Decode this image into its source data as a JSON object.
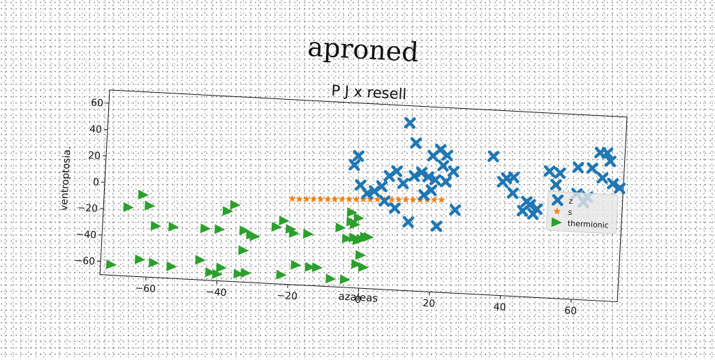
{
  "figure": {
    "suptitle": "aproned"
  },
  "chart_data": {
    "type": "scatter",
    "title": "P J x resell",
    "xlabel": "azaleas",
    "ylabel": "ventroptosia.",
    "xlim": [
      -73,
      73
    ],
    "ylim": [
      -70,
      70
    ],
    "xticks": [
      -60,
      -40,
      -20,
      0,
      20,
      40,
      60
    ],
    "yticks": [
      -60,
      -40,
      -20,
      0,
      20,
      40,
      60
    ],
    "grid": false,
    "legend_position": "right",
    "series": [
      {
        "name": "z",
        "marker": "x",
        "color": "#1f77b4",
        "points": [
          [
            12,
            57
          ],
          [
            14,
            42
          ],
          [
            19,
            33
          ],
          [
            21,
            38
          ],
          [
            23,
            34
          ],
          [
            22,
            26
          ],
          [
            25,
            22
          ],
          [
            -2,
            30
          ],
          [
            -3,
            23
          ],
          [
            -1,
            8
          ],
          [
            5,
            8
          ],
          [
            7,
            16
          ],
          [
            9,
            20
          ],
          [
            11,
            11
          ],
          [
            14,
            17
          ],
          [
            16,
            20
          ],
          [
            18,
            17
          ],
          [
            20,
            15
          ],
          [
            23,
            14
          ],
          [
            6,
            -3
          ],
          [
            9,
            -8
          ],
          [
            13,
            -18
          ],
          [
            21,
            -20
          ],
          [
            26,
            -7
          ],
          [
            3,
            4
          ],
          [
            1,
            2
          ],
          [
            17,
            3
          ],
          [
            19,
            7
          ],
          [
            36,
            35
          ],
          [
            39,
            16
          ],
          [
            40,
            19
          ],
          [
            42,
            20
          ],
          [
            42,
            8
          ],
          [
            45,
            -5
          ],
          [
            47,
            0
          ],
          [
            48,
            -7
          ],
          [
            49,
            -3
          ],
          [
            55,
            25
          ],
          [
            60,
            30
          ],
          [
            64,
            30
          ],
          [
            66,
            42
          ],
          [
            68,
            42
          ],
          [
            69,
            36
          ],
          [
            70,
            19
          ],
          [
            72,
            16
          ],
          [
            60,
            10
          ],
          [
            54,
            16
          ],
          [
            62,
            4
          ],
          [
            63,
            8
          ],
          [
            46,
            2
          ],
          [
            52,
            26
          ],
          [
            67,
            23
          ]
        ]
      },
      {
        "name": "s",
        "marker": "star",
        "color": "#ff7f0e",
        "points": [
          [
            -20,
            -5
          ],
          [
            -18,
            -5
          ],
          [
            -16,
            -4.7
          ],
          [
            -14,
            -4.4
          ],
          [
            -12,
            -4.2
          ],
          [
            -10,
            -4
          ],
          [
            -8,
            -3.7
          ],
          [
            -6,
            -3.5
          ],
          [
            -4,
            -3.2
          ],
          [
            -2,
            -3
          ],
          [
            0,
            -2.7
          ],
          [
            2,
            -2.5
          ],
          [
            4,
            -2.2
          ],
          [
            6,
            -2
          ],
          [
            8,
            -1.7
          ],
          [
            10,
            -1.5
          ],
          [
            12,
            -1.2
          ],
          [
            14,
            -1
          ],
          [
            16,
            -0.7
          ],
          [
            18,
            -0.5
          ],
          [
            20,
            -0.2
          ],
          [
            22,
            0
          ]
        ]
      },
      {
        "name": "thermionic",
        "marker": "triangle-right",
        "color": "#2ca02c",
        "points": [
          [
            -62,
            -8
          ],
          [
            -66,
            -18
          ],
          [
            -60,
            -16
          ],
          [
            -58,
            -31
          ],
          [
            -53,
            -31
          ],
          [
            -44,
            -31
          ],
          [
            -40,
            -31
          ],
          [
            -38,
            -17
          ],
          [
            -36,
            -12
          ],
          [
            -33,
            -31
          ],
          [
            -31,
            -34
          ],
          [
            -30,
            -35
          ],
          [
            -33,
            -46
          ],
          [
            -24,
            -27
          ],
          [
            -22,
            -22
          ],
          [
            -20,
            -28
          ],
          [
            -19,
            -31
          ],
          [
            -15,
            -31
          ],
          [
            -62,
            -57
          ],
          [
            -58,
            -59
          ],
          [
            -53,
            -61
          ],
          [
            -45,
            -55
          ],
          [
            -42,
            -64
          ],
          [
            -39,
            -60
          ],
          [
            -34,
            -64
          ],
          [
            -32,
            -63
          ],
          [
            -22,
            -63
          ],
          [
            -18,
            -55
          ],
          [
            -14,
            -56
          ],
          [
            -12,
            -56
          ],
          [
            -8,
            -64
          ],
          [
            -4,
            -64
          ],
          [
            -70,
            -62
          ],
          [
            -6,
            -25
          ],
          [
            -4,
            -33
          ],
          [
            -2,
            -32
          ],
          [
            -1,
            -34
          ],
          [
            0,
            -33
          ],
          [
            1,
            -31
          ],
          [
            2,
            -31
          ],
          [
            -3,
            -20
          ],
          [
            -2,
            -22
          ],
          [
            0,
            -45
          ],
          [
            1,
            -54
          ],
          [
            -1,
            -52
          ],
          [
            -3,
            -13
          ],
          [
            -1,
            -17
          ],
          [
            -40,
            -65
          ]
        ]
      }
    ]
  }
}
